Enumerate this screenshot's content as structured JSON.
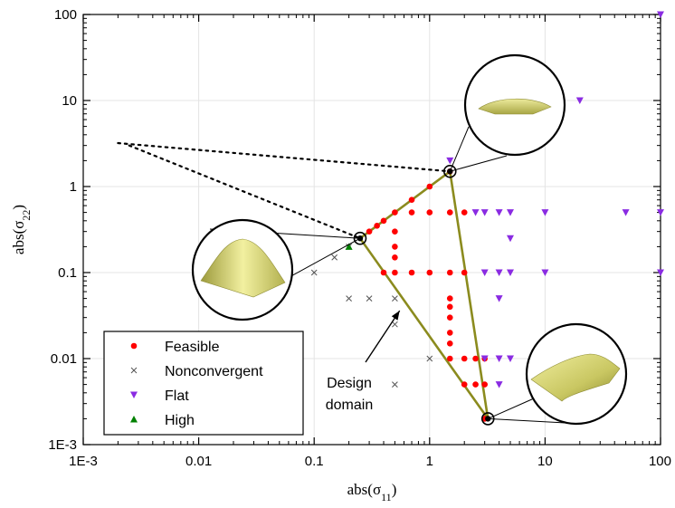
{
  "chart_data": {
    "type": "scatter",
    "xlabel": "abs(σ11)",
    "ylabel": "abs(σ22)",
    "xscale": "log",
    "yscale": "log",
    "xlim": [
      0.001,
      100
    ],
    "ylim": [
      0.001,
      100
    ],
    "x_ticks": [
      "1E-3",
      "0.01",
      "0.1",
      "1",
      "10",
      "100"
    ],
    "y_ticks": [
      "1E-3",
      "0.01",
      "0.1",
      "1",
      "10",
      "100"
    ],
    "grid": true,
    "legend_position": "bottom-left",
    "series": [
      {
        "name": "Feasible",
        "marker": "circle",
        "color": "#ff0000",
        "points": [
          [
            0.3,
            0.3
          ],
          [
            0.35,
            0.35
          ],
          [
            0.4,
            0.4
          ],
          [
            0.5,
            0.5
          ],
          [
            0.7,
            0.7
          ],
          [
            1,
            1
          ],
          [
            1.5,
            1.5
          ],
          [
            0.7,
            0.5
          ],
          [
            1,
            0.5
          ],
          [
            1.5,
            0.5
          ],
          [
            2,
            0.5
          ],
          [
            0.5,
            0.3
          ],
          [
            0.5,
            0.2
          ],
          [
            0.5,
            0.15
          ],
          [
            0.5,
            0.1
          ],
          [
            0.4,
            0.1
          ],
          [
            0.7,
            0.1
          ],
          [
            1,
            0.1
          ],
          [
            1.5,
            0.1
          ],
          [
            2,
            0.1
          ],
          [
            1.5,
            0.05
          ],
          [
            1.5,
            0.04
          ],
          [
            1.5,
            0.03
          ],
          [
            1.5,
            0.02
          ],
          [
            1.5,
            0.015
          ],
          [
            1.5,
            0.01
          ],
          [
            2,
            0.01
          ],
          [
            2.5,
            0.01
          ],
          [
            3,
            0.01
          ],
          [
            2,
            0.005
          ],
          [
            2.5,
            0.005
          ],
          [
            3,
            0.005
          ],
          [
            3,
            0.002
          ]
        ]
      },
      {
        "name": "Nonconvergent",
        "marker": "x",
        "color": "#555555",
        "points": [
          [
            0.1,
            0.1
          ],
          [
            0.15,
            0.15
          ],
          [
            0.2,
            0.2
          ],
          [
            0.2,
            0.05
          ],
          [
            0.3,
            0.05
          ],
          [
            0.5,
            0.05
          ],
          [
            0.5,
            0.025
          ],
          [
            1,
            0.01
          ],
          [
            0.5,
            0.005
          ]
        ]
      },
      {
        "name": "Flat",
        "marker": "triangle-down",
        "color": "#8a2be2",
        "points": [
          [
            100,
            100
          ],
          [
            20,
            10
          ],
          [
            1.5,
            2
          ],
          [
            2.5,
            0.5
          ],
          [
            3,
            0.5
          ],
          [
            4,
            0.5
          ],
          [
            5,
            0.5
          ],
          [
            10,
            0.5
          ],
          [
            50,
            0.5
          ],
          [
            100,
            0.5
          ],
          [
            5,
            0.25
          ],
          [
            3,
            0.1
          ],
          [
            4,
            0.1
          ],
          [
            5,
            0.1
          ],
          [
            10,
            0.1
          ],
          [
            100,
            0.1
          ],
          [
            4,
            0.05
          ],
          [
            3,
            0.01
          ],
          [
            4,
            0.01
          ],
          [
            5,
            0.01
          ],
          [
            4,
            0.005
          ]
        ]
      },
      {
        "name": "High",
        "marker": "triangle-up",
        "color": "#008000",
        "points": [
          [
            0.2,
            0.2
          ]
        ]
      }
    ],
    "design_domain": [
      [
        0.25,
        0.25
      ],
      [
        1.5,
        1.5
      ],
      [
        3.2,
        0.002
      ]
    ],
    "dotted_lines": [
      [
        [
          0.002,
          3.2
        ],
        [
          1.5,
          1.5
        ]
      ],
      [
        [
          0.0025,
          3
        ],
        [
          0.25,
          0.25
        ]
      ]
    ],
    "insets": [
      {
        "name": "peak-surface",
        "point": [
          0.25,
          0.25
        ],
        "kind": "peak"
      },
      {
        "name": "low-dome-surface",
        "point": [
          1.5,
          1.5
        ],
        "kind": "low-dome"
      },
      {
        "name": "wavy-surface",
        "point": [
          3.2,
          0.002
        ],
        "kind": "wavy"
      }
    ],
    "annotation": {
      "text_lines": [
        "Design",
        "domain"
      ],
      "arrow_target": [
        0.55,
        0.036
      ]
    }
  }
}
